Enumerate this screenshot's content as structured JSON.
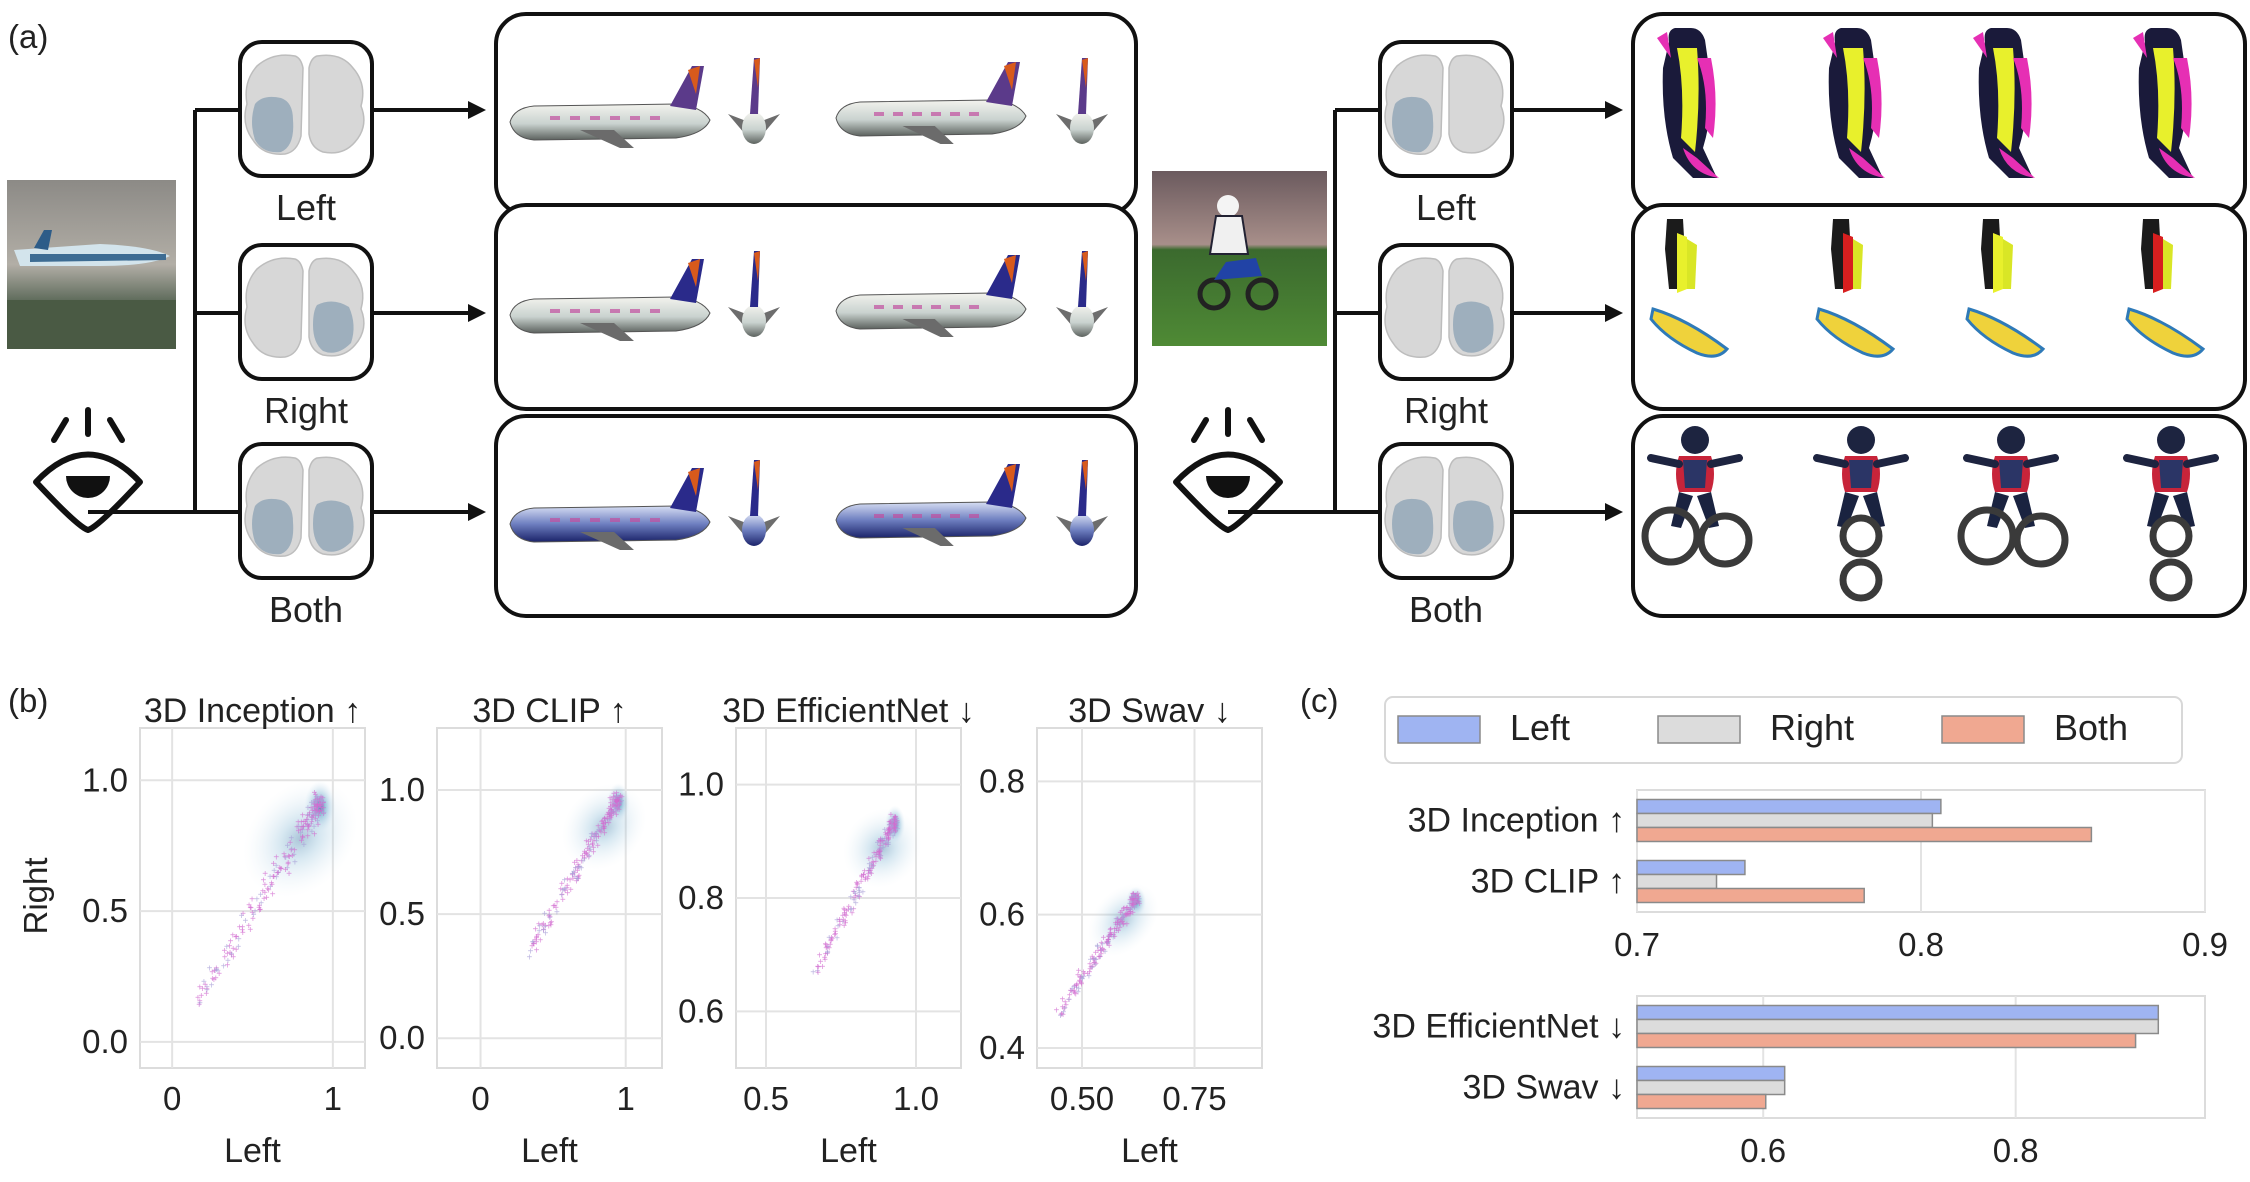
{
  "panel_a": {
    "label": "(a)",
    "groups": [
      {
        "name": "airplane",
        "branches": [
          {
            "label": "Left",
            "hemisphere": "left"
          },
          {
            "label": "Right",
            "hemisphere": "right"
          },
          {
            "label": "Both",
            "hemisphere": "both"
          }
        ]
      },
      {
        "name": "motorbike",
        "branches": [
          {
            "label": "Left",
            "hemisphere": "left"
          },
          {
            "label": "Right",
            "hemisphere": "right"
          },
          {
            "label": "Both",
            "hemisphere": "both"
          }
        ]
      }
    ],
    "icons": [
      "eye-icon",
      "brain-icon",
      "airplane-render",
      "motorbike-render",
      "arrow-icon"
    ]
  },
  "panel_b": {
    "label": "(b)",
    "ylabel": "Right",
    "plots": [
      {
        "title": "3D Inception ↑",
        "xlabel": "Left",
        "xticks": [
          "0",
          "1"
        ],
        "yticks": [
          "0.0",
          "0.5",
          "1.0"
        ],
        "xlim": [
          -0.2,
          1.2
        ],
        "ylim": [
          -0.1,
          1.2
        ]
      },
      {
        "title": "3D CLIP ↑",
        "xlabel": "Left",
        "xticks": [
          "0",
          "1"
        ],
        "yticks": [
          "0.0",
          "0.5",
          "1.0"
        ],
        "xlim": [
          -0.3,
          1.25
        ],
        "ylim": [
          -0.12,
          1.25
        ]
      },
      {
        "title": "3D EfficientNet ↓",
        "xlabel": "Left",
        "xticks": [
          "0.5",
          "1.0"
        ],
        "yticks": [
          "0.6",
          "0.8",
          "1.0"
        ],
        "xlim": [
          0.4,
          1.15
        ],
        "ylim": [
          0.5,
          1.1
        ]
      },
      {
        "title": "3D Swav ↓",
        "xlabel": "Left",
        "xticks": [
          "0.50",
          "0.75"
        ],
        "yticks": [
          "0.4",
          "0.6",
          "0.8"
        ],
        "xlim": [
          0.4,
          0.9
        ],
        "ylim": [
          0.37,
          0.88
        ]
      }
    ]
  },
  "panel_c": {
    "label": "(c)",
    "legend": [
      {
        "name": "Left",
        "color": "#9fb4f2"
      },
      {
        "name": "Right",
        "color": "#dcdcdc"
      },
      {
        "name": "Both",
        "color": "#f0a891"
      }
    ]
  },
  "chart_data": [
    {
      "type": "bar",
      "orientation": "horizontal",
      "categories": [
        "3D Inception ↑",
        "3D CLIP ↑"
      ],
      "series": [
        {
          "name": "Left",
          "values": [
            0.807,
            0.738
          ]
        },
        {
          "name": "Right",
          "values": [
            0.804,
            0.728
          ]
        },
        {
          "name": "Both",
          "values": [
            0.86,
            0.78
          ]
        }
      ],
      "xlim": [
        0.7,
        0.9
      ],
      "xticks": [
        "0.7",
        "0.8",
        "0.9"
      ],
      "grid": true,
      "legend": "top"
    },
    {
      "type": "bar",
      "orientation": "horizontal",
      "categories": [
        "3D EfficientNet ↓",
        "3D Swav ↓"
      ],
      "series": [
        {
          "name": "Left",
          "values": [
            0.913,
            0.617
          ]
        },
        {
          "name": "Right",
          "values": [
            0.913,
            0.617
          ]
        },
        {
          "name": "Both",
          "values": [
            0.895,
            0.602
          ]
        }
      ],
      "xlim": [
        0.5,
        0.95
      ],
      "xticks": [
        "0.6",
        "0.8"
      ],
      "grid": true,
      "legend": "top"
    }
  ]
}
